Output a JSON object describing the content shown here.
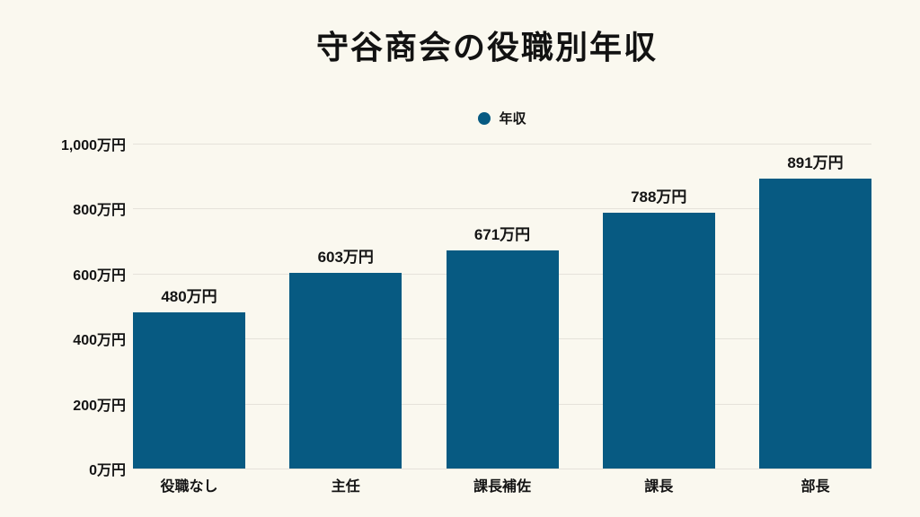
{
  "title": "守谷商会の役職別年収",
  "legend": {
    "label": "年収"
  },
  "colors": {
    "background": "#FAF8EF",
    "bar": "#075A82",
    "gridline": "#E5E2DA",
    "text": "#141414"
  },
  "y_axis": {
    "tick_labels": [
      "1,000万円",
      "800万円",
      "600万円",
      "400万円",
      "200万円",
      "0万円"
    ],
    "unit": "万円",
    "min": 0,
    "max": 1000,
    "step": 200
  },
  "chart_data": {
    "type": "bar",
    "title": "守谷商会の役職別年収",
    "series_name": "年収",
    "categories": [
      "役職なし",
      "主任",
      "課長補佐",
      "課長",
      "部長"
    ],
    "values": [
      480,
      603,
      671,
      788,
      891
    ],
    "data_labels": [
      "480万円",
      "603万円",
      "671万円",
      "788万円",
      "891万円"
    ],
    "unit": "万円",
    "xlabel": "",
    "ylabel": "",
    "ylim": [
      0,
      1000
    ],
    "ytick_step": 200,
    "grid": true,
    "legend_position": "top-center",
    "bar_color": "#075A82",
    "background_color": "#FAF8EF"
  }
}
